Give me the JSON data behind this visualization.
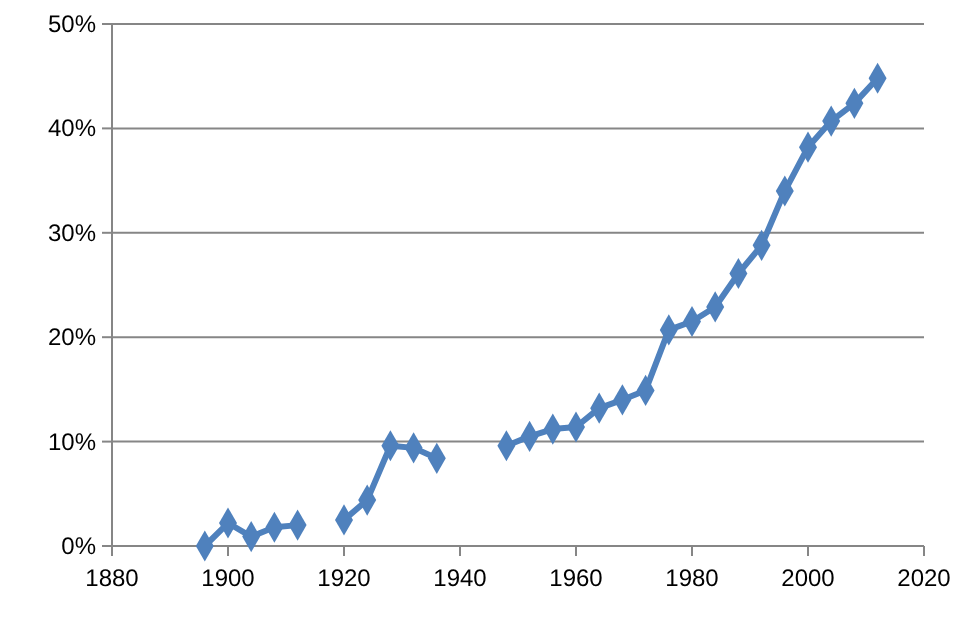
{
  "chart_data": {
    "type": "line",
    "x": [
      1896,
      1900,
      1904,
      1908,
      1912,
      1916,
      1920,
      1924,
      1928,
      1932,
      1936,
      1940,
      1944,
      1948,
      1952,
      1956,
      1960,
      1964,
      1968,
      1972,
      1976,
      1980,
      1984,
      1988,
      1992,
      1996,
      2000,
      2004,
      2008,
      2012
    ],
    "series": [
      {
        "color": "#4f81bd",
        "values": [
          0,
          2.2,
          0.9,
          1.8,
          2.0,
          null,
          2.5,
          4.4,
          9.6,
          9.4,
          8.4,
          null,
          null,
          9.6,
          10.5,
          11.2,
          11.4,
          13.2,
          14.0,
          14.9,
          20.7,
          21.5,
          22.9,
          26.1,
          28.8,
          34.0,
          38.2,
          40.7,
          42.4,
          44.8
        ]
      }
    ],
    "xlim": [
      1880,
      2020
    ],
    "xticks": [
      1880,
      1900,
      1920,
      1940,
      1960,
      1980,
      2000,
      2020
    ],
    "ylim": [
      0,
      50
    ],
    "yticks": [
      {
        "value": 0,
        "label": "0%"
      },
      {
        "value": 10,
        "label": "10%"
      },
      {
        "value": 20,
        "label": "20%"
      },
      {
        "value": 30,
        "label": "30%"
      },
      {
        "value": 40,
        "label": "40%"
      },
      {
        "value": 50,
        "label": "50%"
      }
    ],
    "grid": "y",
    "marker": "diamond",
    "line_style": "solid"
  }
}
